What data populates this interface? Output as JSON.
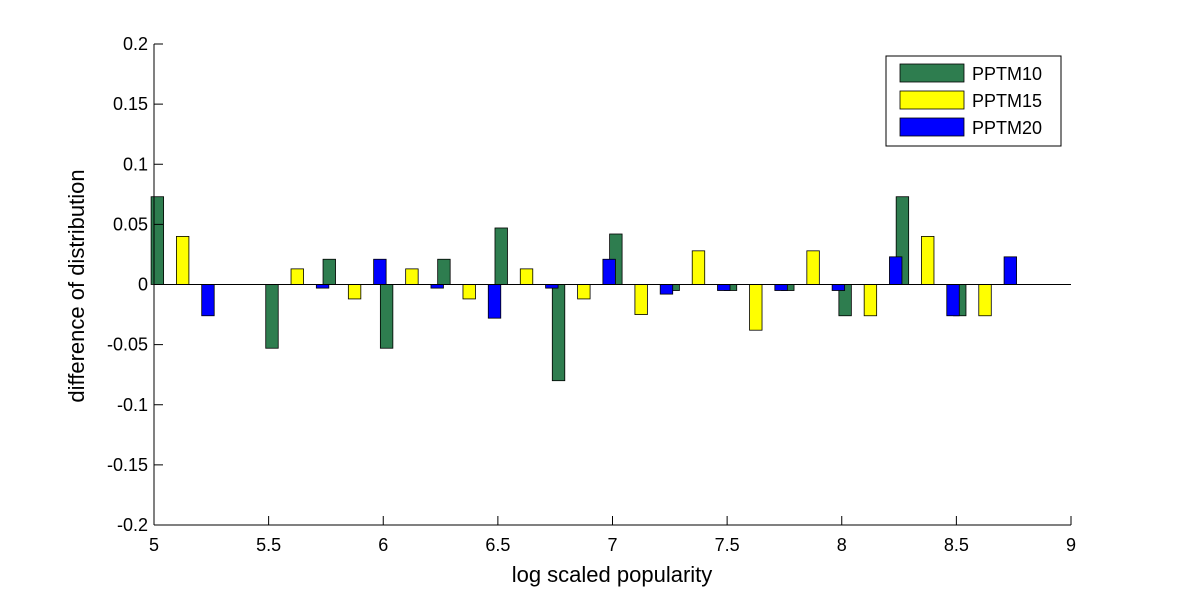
{
  "chart_data": {
    "type": "bar",
    "xlabel": "log scaled popularity",
    "ylabel": "difference of distribution",
    "xlim": [
      5,
      9
    ],
    "ylim": [
      -0.2,
      0.2
    ],
    "xticks": [
      5,
      5.5,
      6,
      6.5,
      7,
      7.5,
      8,
      8.5,
      9
    ],
    "xtick_labels": [
      "5",
      "5.5",
      "6",
      "6.5",
      "7",
      "7.5",
      "8",
      "8.5",
      "9"
    ],
    "yticks": [
      -0.2,
      -0.15,
      -0.1,
      -0.05,
      0,
      0.05,
      0.1,
      0.15,
      0.2
    ],
    "ytick_labels": [
      "-0.2",
      "-0.15",
      "-0.1",
      "-0.05",
      "0",
      "0.05",
      "0.1",
      "0.15",
      "0.2"
    ],
    "grid": false,
    "legend_position": "top-right",
    "x": [
      5.125,
      5.625,
      5.875,
      6.125,
      6.375,
      6.625,
      6.875,
      7.125,
      7.375,
      7.625,
      7.875,
      8.125,
      8.375,
      8.625
    ],
    "series": [
      {
        "name": "PPTM10",
        "color": "#2e7d4f",
        "values": [
          0.073,
          -0.053,
          0.021,
          -0.053,
          0.021,
          0.047,
          -0.08,
          0.042,
          -0.005,
          -0.005,
          -0.005,
          -0.026,
          0.073,
          -0.026
        ]
      },
      {
        "name": "PPTM15",
        "color": "#ffff00",
        "values": [
          0.04,
          0.013,
          -0.012,
          0.013,
          -0.012,
          0.013,
          -0.012,
          -0.025,
          0.028,
          -0.038,
          0.028,
          -0.026,
          0.04,
          -0.026
        ]
      },
      {
        "name": "PPTM20",
        "color": "#0000ff",
        "values": [
          -0.026,
          -0.003,
          0.021,
          -0.003,
          -0.028,
          -0.003,
          0.021,
          -0.008,
          -0.005,
          -0.005,
          -0.005,
          0.023,
          -0.026,
          0.023
        ]
      }
    ]
  }
}
